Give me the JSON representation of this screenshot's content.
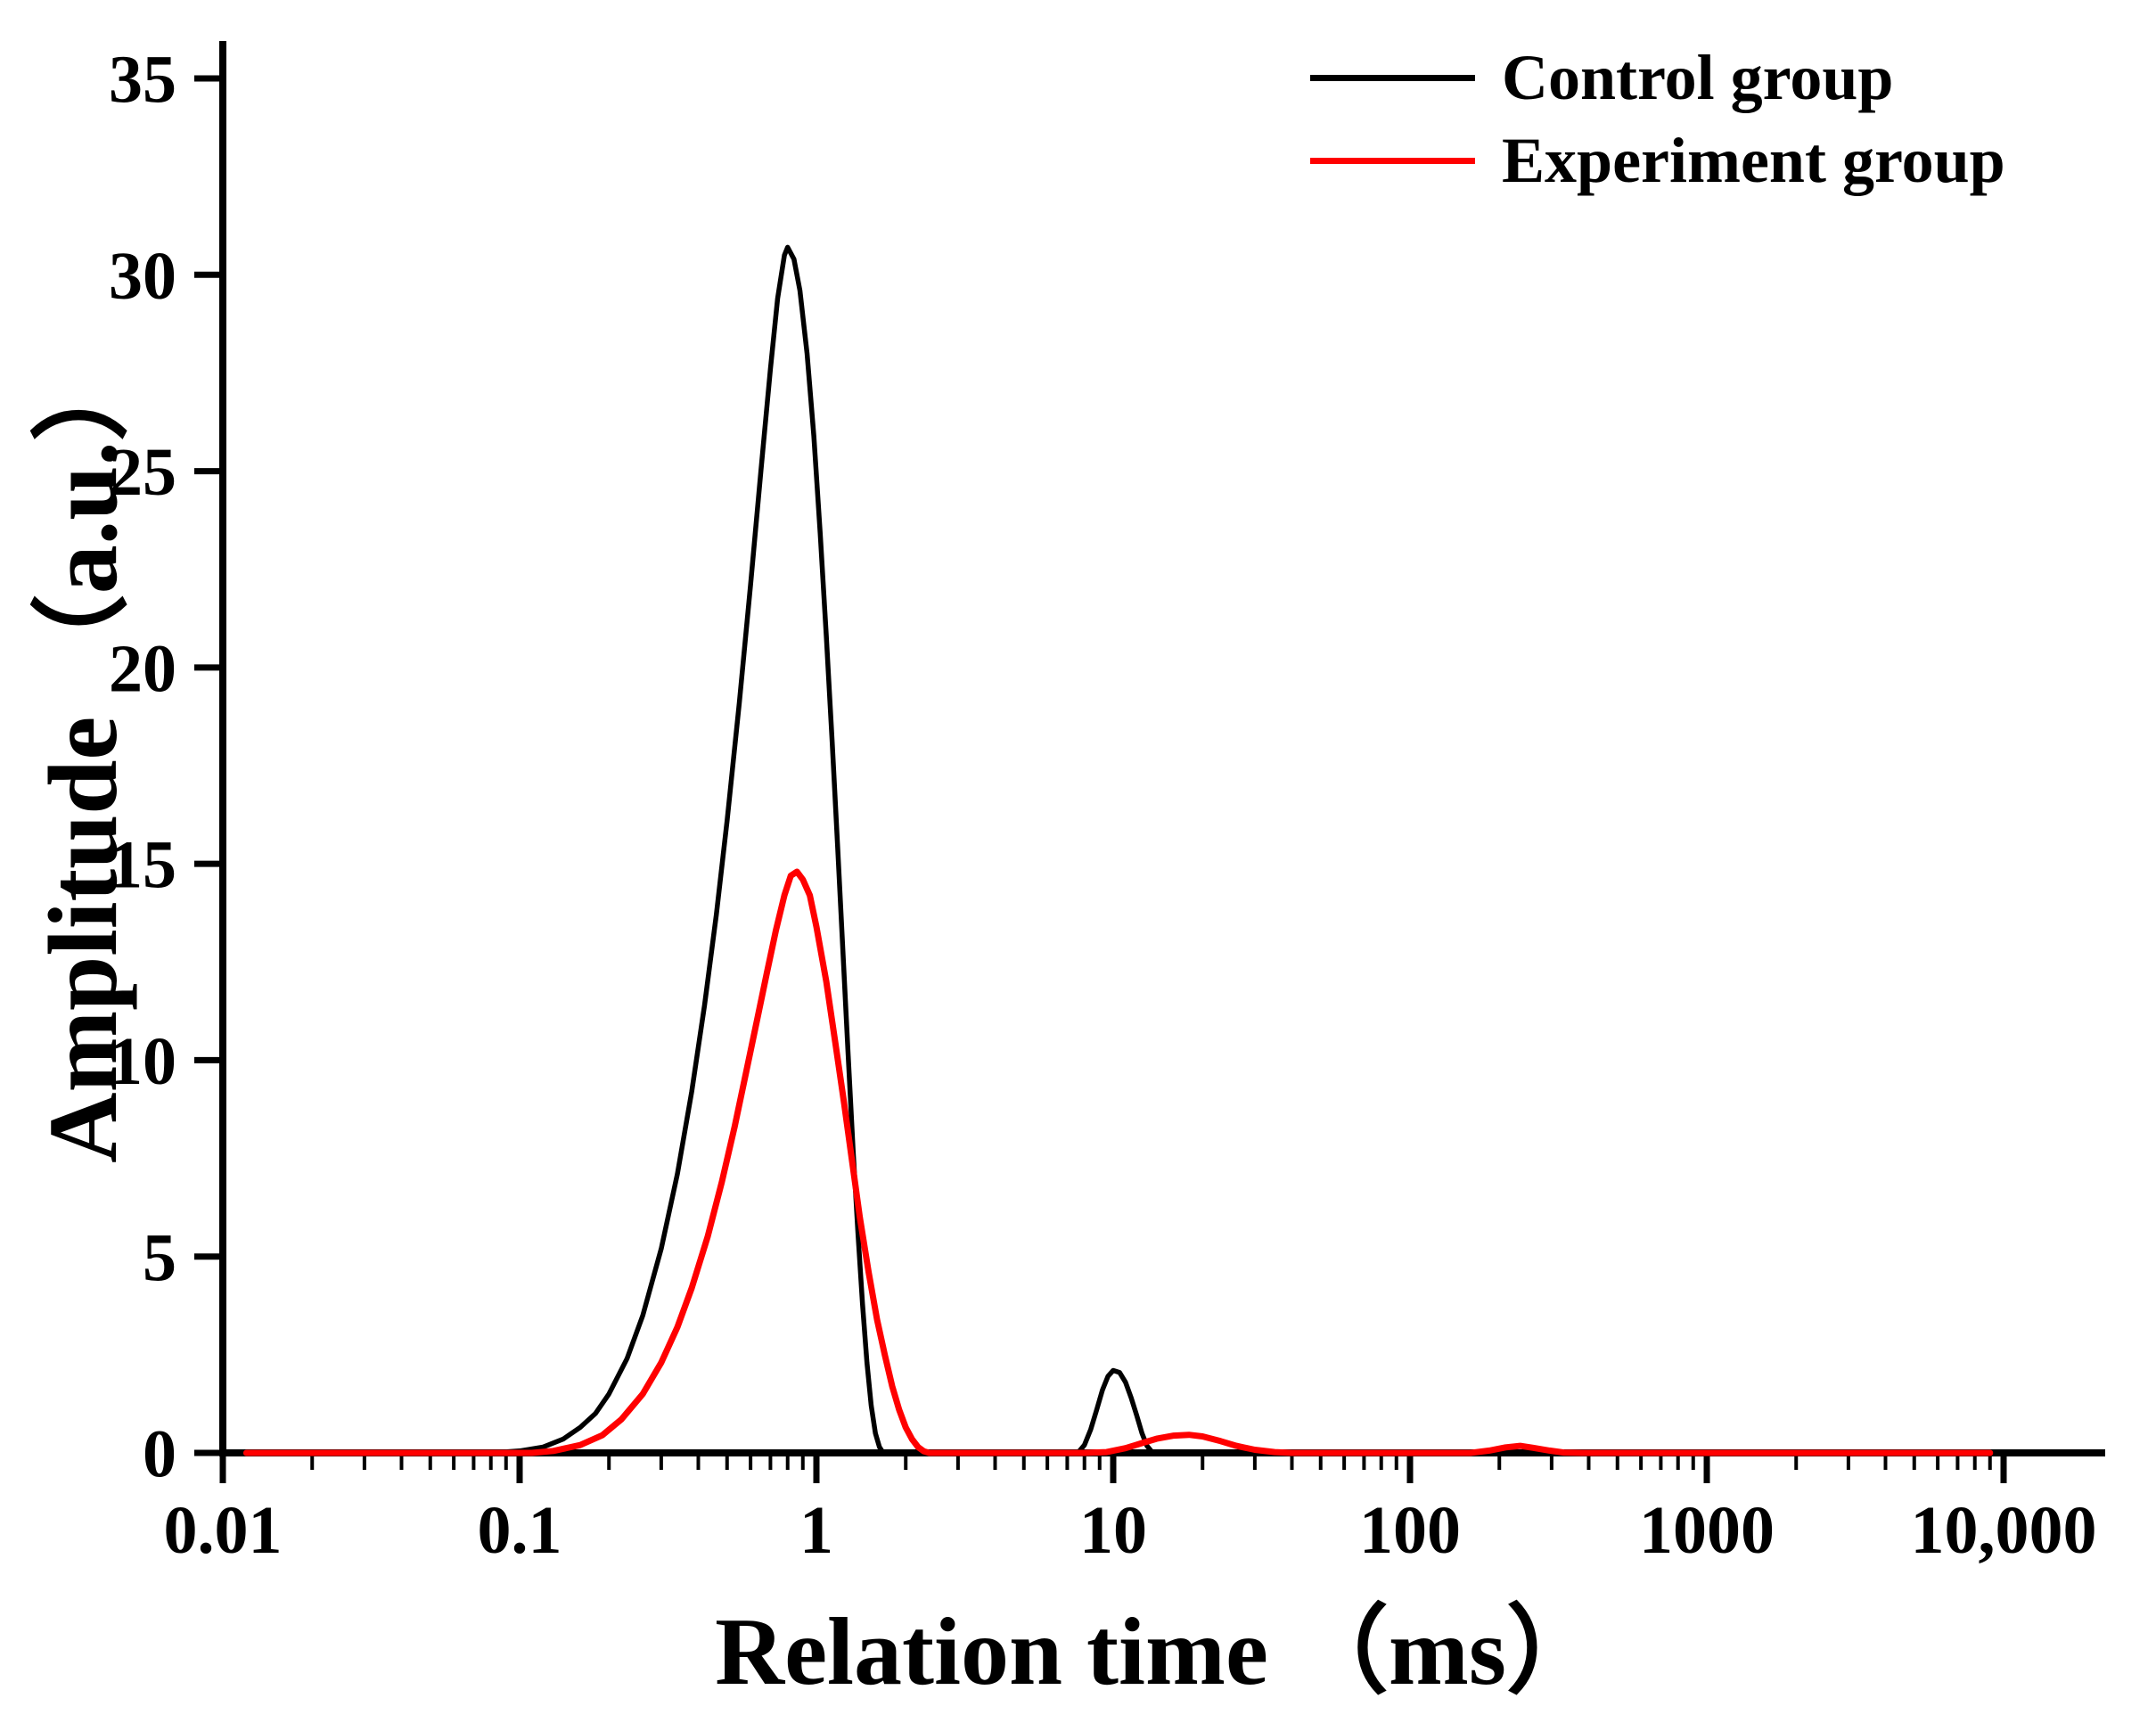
{
  "chart_data": {
    "type": "line",
    "title": "",
    "xlabel": "Relation time （ms）",
    "ylabel": "Amplitude （a.u.）",
    "x_scale": "log",
    "xlim": [
      0.01,
      10000
    ],
    "ylim": [
      0,
      35
    ],
    "x_ticks": [
      {
        "value": 0.01,
        "label": "0.01"
      },
      {
        "value": 0.1,
        "label": "0.1"
      },
      {
        "value": 1,
        "label": "1"
      },
      {
        "value": 10,
        "label": "10"
      },
      {
        "value": 100,
        "label": "100"
      },
      {
        "value": 1000,
        "label": "1000"
      },
      {
        "value": 10000,
        "label": "10,000"
      }
    ],
    "y_ticks": [
      0,
      5,
      10,
      15,
      20,
      25,
      30,
      35
    ],
    "grid": false,
    "legend_position": "top-right",
    "background_color": "#ffffff",
    "axis_color": "#000000",
    "series": [
      {
        "name": "Control group",
        "color": "#000000",
        "stroke_width": 5.5,
        "points": [
          [
            0.012,
            0
          ],
          [
            0.05,
            0
          ],
          [
            0.08,
            0
          ],
          [
            0.1,
            0.05
          ],
          [
            0.12,
            0.15
          ],
          [
            0.14,
            0.35
          ],
          [
            0.16,
            0.65
          ],
          [
            0.18,
            1.0
          ],
          [
            0.2,
            1.5
          ],
          [
            0.23,
            2.4
          ],
          [
            0.26,
            3.5
          ],
          [
            0.3,
            5.2
          ],
          [
            0.34,
            7.1
          ],
          [
            0.38,
            9.2
          ],
          [
            0.42,
            11.4
          ],
          [
            0.46,
            13.7
          ],
          [
            0.5,
            16.1
          ],
          [
            0.55,
            19.1
          ],
          [
            0.6,
            22.1
          ],
          [
            0.65,
            25.0
          ],
          [
            0.7,
            27.6
          ],
          [
            0.74,
            29.4
          ],
          [
            0.78,
            30.5
          ],
          [
            0.8,
            30.7
          ],
          [
            0.84,
            30.4
          ],
          [
            0.88,
            29.6
          ],
          [
            0.93,
            28.0
          ],
          [
            0.98,
            25.9
          ],
          [
            1.03,
            23.4
          ],
          [
            1.08,
            20.8
          ],
          [
            1.13,
            18.1
          ],
          [
            1.18,
            15.4
          ],
          [
            1.23,
            12.7
          ],
          [
            1.28,
            10.1
          ],
          [
            1.33,
            7.7
          ],
          [
            1.38,
            5.6
          ],
          [
            1.43,
            3.8
          ],
          [
            1.48,
            2.3
          ],
          [
            1.53,
            1.2
          ],
          [
            1.58,
            0.5
          ],
          [
            1.63,
            0.15
          ],
          [
            1.68,
            0
          ],
          [
            3,
            0
          ],
          [
            6,
            0
          ],
          [
            7.6,
            0
          ],
          [
            8,
            0.2
          ],
          [
            8.4,
            0.6
          ],
          [
            8.8,
            1.1
          ],
          [
            9.2,
            1.6
          ],
          [
            9.6,
            1.95
          ],
          [
            10,
            2.1
          ],
          [
            10.5,
            2.05
          ],
          [
            11,
            1.8
          ],
          [
            11.5,
            1.4
          ],
          [
            12,
            0.95
          ],
          [
            12.5,
            0.5
          ],
          [
            13,
            0.18
          ],
          [
            13.5,
            0.03
          ],
          [
            14,
            0
          ],
          [
            30,
            0
          ],
          [
            100,
            0
          ],
          [
            1000,
            0
          ],
          [
            9000,
            0
          ]
        ]
      },
      {
        "name": "Experiment group",
        "color": "#ff0000",
        "stroke_width": 7,
        "points": [
          [
            0.012,
            0
          ],
          [
            0.08,
            0
          ],
          [
            0.11,
            0
          ],
          [
            0.13,
            0.05
          ],
          [
            0.16,
            0.2
          ],
          [
            0.19,
            0.45
          ],
          [
            0.22,
            0.85
          ],
          [
            0.26,
            1.5
          ],
          [
            0.3,
            2.3
          ],
          [
            0.34,
            3.2
          ],
          [
            0.38,
            4.2
          ],
          [
            0.43,
            5.5
          ],
          [
            0.48,
            6.9
          ],
          [
            0.53,
            8.3
          ],
          [
            0.58,
            9.7
          ],
          [
            0.63,
            11.0
          ],
          [
            0.68,
            12.2
          ],
          [
            0.73,
            13.3
          ],
          [
            0.78,
            14.2
          ],
          [
            0.82,
            14.7
          ],
          [
            0.86,
            14.8
          ],
          [
            0.9,
            14.6
          ],
          [
            0.95,
            14.2
          ],
          [
            1.0,
            13.4
          ],
          [
            1.08,
            12.0
          ],
          [
            1.16,
            10.4
          ],
          [
            1.24,
            8.9
          ],
          [
            1.32,
            7.4
          ],
          [
            1.4,
            6.0
          ],
          [
            1.5,
            4.6
          ],
          [
            1.6,
            3.4
          ],
          [
            1.7,
            2.5
          ],
          [
            1.8,
            1.7
          ],
          [
            1.9,
            1.1
          ],
          [
            2.0,
            0.65
          ],
          [
            2.1,
            0.35
          ],
          [
            2.2,
            0.15
          ],
          [
            2.3,
            0.04
          ],
          [
            2.4,
            0
          ],
          [
            4,
            0
          ],
          [
            8,
            0
          ],
          [
            9.5,
            0.02
          ],
          [
            11,
            0.12
          ],
          [
            12.5,
            0.25
          ],
          [
            14,
            0.36
          ],
          [
            16,
            0.44
          ],
          [
            18,
            0.46
          ],
          [
            20,
            0.42
          ],
          [
            23,
            0.3
          ],
          [
            26,
            0.18
          ],
          [
            30,
            0.08
          ],
          [
            35,
            0.02
          ],
          [
            40,
            0
          ],
          [
            100,
            0
          ],
          [
            160,
            0
          ],
          [
            185,
            0.06
          ],
          [
            210,
            0.14
          ],
          [
            235,
            0.18
          ],
          [
            260,
            0.13
          ],
          [
            295,
            0.06
          ],
          [
            330,
            0.01
          ],
          [
            380,
            0
          ],
          [
            1000,
            0
          ],
          [
            9000,
            0
          ]
        ]
      }
    ]
  },
  "legend": {
    "items": [
      {
        "label": "Control group"
      },
      {
        "label": "Experiment group"
      }
    ]
  }
}
